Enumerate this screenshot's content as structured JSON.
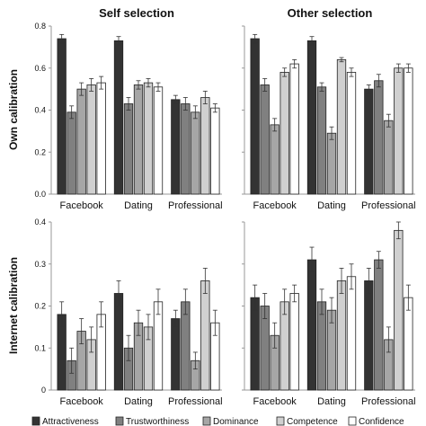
{
  "column_titles": [
    "Self selection",
    "Other selection"
  ],
  "row_titles": [
    "Own calibration",
    "Internet calibration"
  ],
  "colors": {
    "Attractiveness": "#333333",
    "Trustworthiness": "#808080",
    "Dominance": "#a6a6a6",
    "Competence": "#d0d0d0",
    "Confidence": "#ffffff"
  },
  "chart_data": [
    {
      "type": "bar",
      "panel": "top-left",
      "categories": [
        "Facebook",
        "Dating",
        "Professional"
      ],
      "ylim": [
        0,
        0.8
      ],
      "yticks": [
        "0.0",
        "0.2",
        "0.4",
        "0.6",
        "0.8"
      ],
      "series": [
        {
          "name": "Attractiveness",
          "values": [
            0.74,
            0.73,
            0.45
          ],
          "errors": [
            0.02,
            0.02,
            0.02
          ]
        },
        {
          "name": "Trustworthiness",
          "values": [
            0.39,
            0.43,
            0.43
          ],
          "errors": [
            0.03,
            0.03,
            0.03
          ]
        },
        {
          "name": "Dominance",
          "values": [
            0.5,
            0.52,
            0.39
          ],
          "errors": [
            0.03,
            0.02,
            0.03
          ]
        },
        {
          "name": "Competence",
          "values": [
            0.52,
            0.53,
            0.46
          ],
          "errors": [
            0.03,
            0.02,
            0.03
          ]
        },
        {
          "name": "Confidence",
          "values": [
            0.53,
            0.51,
            0.41
          ],
          "errors": [
            0.03,
            0.02,
            0.02
          ]
        }
      ]
    },
    {
      "type": "bar",
      "panel": "top-right",
      "categories": [
        "Facebook",
        "Dating",
        "Professional"
      ],
      "ylim": [
        0,
        0.8
      ],
      "yticks": [
        "0.0",
        "0.2",
        "0.4",
        "0.6",
        "0.8"
      ],
      "series": [
        {
          "name": "Attractiveness",
          "values": [
            0.74,
            0.73,
            0.5
          ],
          "errors": [
            0.02,
            0.02,
            0.02
          ]
        },
        {
          "name": "Trustworthiness",
          "values": [
            0.52,
            0.51,
            0.54
          ],
          "errors": [
            0.03,
            0.02,
            0.03
          ]
        },
        {
          "name": "Dominance",
          "values": [
            0.33,
            0.29,
            0.35
          ],
          "errors": [
            0.03,
            0.03,
            0.03
          ]
        },
        {
          "name": "Competence",
          "values": [
            0.58,
            0.64,
            0.6
          ],
          "errors": [
            0.02,
            0.01,
            0.02
          ]
        },
        {
          "name": "Confidence",
          "values": [
            0.62,
            0.58,
            0.6
          ],
          "errors": [
            0.02,
            0.02,
            0.02
          ]
        }
      ]
    },
    {
      "type": "bar",
      "panel": "bottom-left",
      "categories": [
        "Facebook",
        "Dating",
        "Professional"
      ],
      "ylim": [
        0,
        0.4
      ],
      "yticks": [
        "0",
        "0.1",
        "0.2",
        "0.3",
        "0.4"
      ],
      "series": [
        {
          "name": "Attractiveness",
          "values": [
            0.18,
            0.23,
            0.17
          ],
          "errors": [
            0.03,
            0.03,
            0.02
          ]
        },
        {
          "name": "Trustworthiness",
          "values": [
            0.07,
            0.1,
            0.21
          ],
          "errors": [
            0.03,
            0.03,
            0.03
          ]
        },
        {
          "name": "Dominance",
          "values": [
            0.14,
            0.16,
            0.07
          ],
          "errors": [
            0.03,
            0.03,
            0.02
          ]
        },
        {
          "name": "Competence",
          "values": [
            0.12,
            0.15,
            0.26
          ],
          "errors": [
            0.03,
            0.03,
            0.03
          ]
        },
        {
          "name": "Confidence",
          "values": [
            0.18,
            0.21,
            0.16
          ],
          "errors": [
            0.03,
            0.03,
            0.03
          ]
        }
      ]
    },
    {
      "type": "bar",
      "panel": "bottom-right",
      "categories": [
        "Facebook",
        "Dating",
        "Professional"
      ],
      "ylim": [
        0,
        0.4
      ],
      "yticks": [
        "0",
        "0.1",
        "0.2",
        "0.3",
        "0.4"
      ],
      "series": [
        {
          "name": "Attractiveness",
          "values": [
            0.22,
            0.31,
            0.26
          ],
          "errors": [
            0.03,
            0.03,
            0.03
          ]
        },
        {
          "name": "Trustworthiness",
          "values": [
            0.2,
            0.21,
            0.31
          ],
          "errors": [
            0.03,
            0.03,
            0.02
          ]
        },
        {
          "name": "Dominance",
          "values": [
            0.13,
            0.19,
            0.12
          ],
          "errors": [
            0.03,
            0.03,
            0.03
          ]
        },
        {
          "name": "Competence",
          "values": [
            0.21,
            0.26,
            0.38
          ],
          "errors": [
            0.03,
            0.03,
            0.02
          ]
        },
        {
          "name": "Confidence",
          "values": [
            0.23,
            0.27,
            0.22
          ],
          "errors": [
            0.02,
            0.03,
            0.03
          ]
        }
      ]
    }
  ],
  "legend": [
    "Attractiveness",
    "Trustworthiness",
    "Dominance",
    "Competence",
    "Confidence"
  ]
}
